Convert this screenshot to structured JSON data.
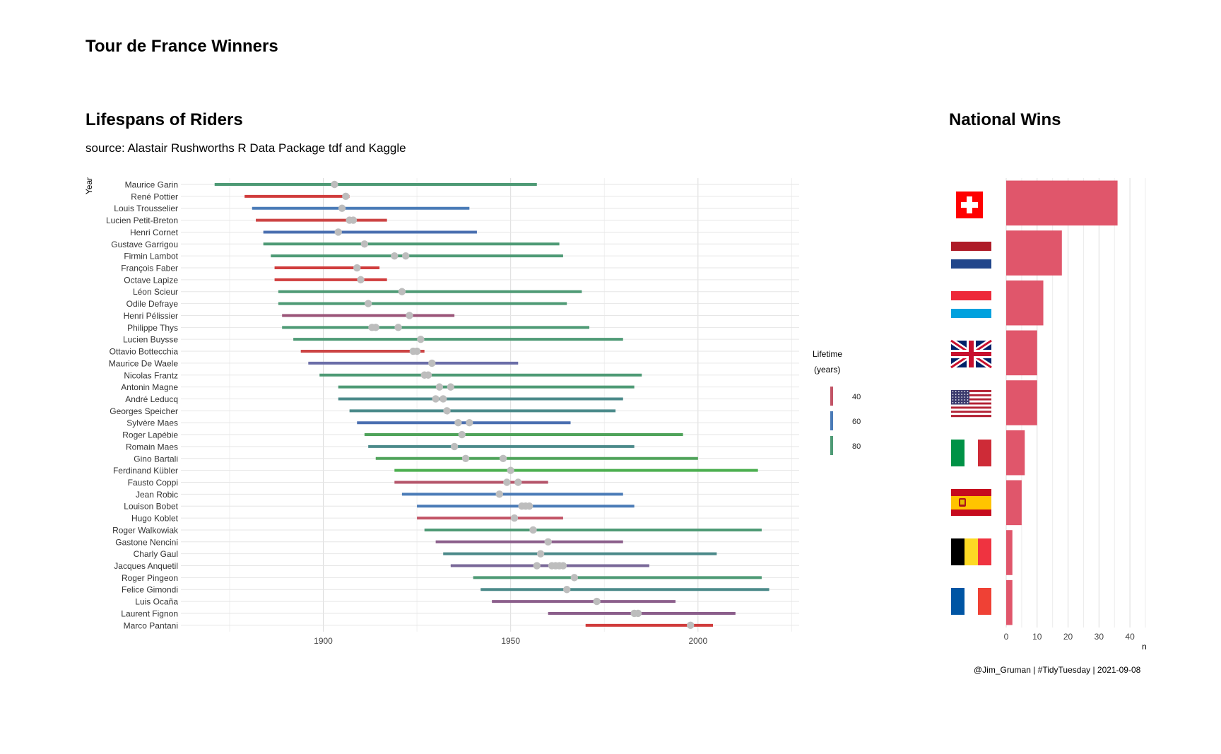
{
  "title": "Tour de France Winners",
  "left_panel": {
    "title": "Lifespans of Riders",
    "subtitle": "source: Alastair Rushworths R Data Package tdf and Kaggle"
  },
  "right_panel": {
    "title": "National Wins"
  },
  "caption": "@Jim_Gruman | #TidyTuesday | 2021-09-08",
  "legend": {
    "title_line1": "Lifetime",
    "title_line2": "(years)",
    "items": [
      {
        "label": "40",
        "color": "#c25466"
      },
      {
        "label": "60",
        "color": "#4a7bb7"
      },
      {
        "label": "80",
        "color": "#4e9a75"
      }
    ]
  },
  "chart_data": [
    {
      "type": "lifespan-range",
      "ylabel": "Year",
      "xlim": [
        1862,
        2027
      ],
      "xticks": [
        1900,
        1950,
        2000
      ],
      "grid": true,
      "riders": [
        {
          "name": "Maurice Garin",
          "born": 1871,
          "died": 1957,
          "wins": [
            1903
          ],
          "color": "#4e9a75"
        },
        {
          "name": "René Pottier",
          "born": 1879,
          "died": 1907,
          "wins": [
            1906
          ],
          "color": "#d03c3c"
        },
        {
          "name": "Louis Trousselier",
          "born": 1881,
          "died": 1939,
          "wins": [
            1905
          ],
          "color": "#4a7bb7"
        },
        {
          "name": "Lucien Petit-Breton",
          "born": 1882,
          "died": 1917,
          "wins": [
            1907,
            1908
          ],
          "color": "#cc4444"
        },
        {
          "name": "Henri Cornet",
          "born": 1884,
          "died": 1941,
          "wins": [
            1904
          ],
          "color": "#4a6fb0"
        },
        {
          "name": "Gustave Garrigou",
          "born": 1884,
          "died": 1963,
          "wins": [
            1911
          ],
          "color": "#4e9a75"
        },
        {
          "name": "Firmin Lambot",
          "born": 1886,
          "died": 1964,
          "wins": [
            1919,
            1922
          ],
          "color": "#4e9a75"
        },
        {
          "name": "François Faber",
          "born": 1887,
          "died": 1915,
          "wins": [
            1909
          ],
          "color": "#d03c3c"
        },
        {
          "name": "Octave Lapize",
          "born": 1887,
          "died": 1917,
          "wins": [
            1910
          ],
          "color": "#d03c3c"
        },
        {
          "name": "Léon Scieur",
          "born": 1888,
          "died": 1969,
          "wins": [
            1921
          ],
          "color": "#4e9a75"
        },
        {
          "name": "Odile Defraye",
          "born": 1888,
          "died": 1965,
          "wins": [
            1912
          ],
          "color": "#4e9a75"
        },
        {
          "name": "Henri Pélissier",
          "born": 1889,
          "died": 1935,
          "wins": [
            1923
          ],
          "color": "#9a5478"
        },
        {
          "name": "Philippe Thys",
          "born": 1889,
          "died": 1971,
          "wins": [
            1913,
            1914,
            1920
          ],
          "color": "#4e9a75"
        },
        {
          "name": "Lucien Buysse",
          "born": 1892,
          "died": 1980,
          "wins": [
            1926
          ],
          "color": "#4e9a75"
        },
        {
          "name": "Ottavio Bottecchia",
          "born": 1894,
          "died": 1927,
          "wins": [
            1924,
            1925
          ],
          "color": "#cc4444"
        },
        {
          "name": "Maurice De Waele",
          "born": 1896,
          "died": 1952,
          "wins": [
            1929
          ],
          "color": "#6b6ea8"
        },
        {
          "name": "Nicolas Frantz",
          "born": 1899,
          "died": 1985,
          "wins": [
            1927,
            1928
          ],
          "color": "#4e9a75"
        },
        {
          "name": "Antonin Magne",
          "born": 1904,
          "died": 1983,
          "wins": [
            1931,
            1934
          ],
          "color": "#4e9a75"
        },
        {
          "name": "André Leducq",
          "born": 1904,
          "died": 1980,
          "wins": [
            1930,
            1932
          ],
          "color": "#4b8a8a"
        },
        {
          "name": "Georges Speicher",
          "born": 1907,
          "died": 1978,
          "wins": [
            1933
          ],
          "color": "#4b8a8a"
        },
        {
          "name": "Sylvère Maes",
          "born": 1909,
          "died": 1966,
          "wins": [
            1936,
            1939
          ],
          "color": "#4a6fb0"
        },
        {
          "name": "Roger Lapébie",
          "born": 1911,
          "died": 1996,
          "wins": [
            1937
          ],
          "color": "#4fa35a"
        },
        {
          "name": "Romain Maes",
          "born": 1912,
          "died": 1983,
          "wins": [
            1935
          ],
          "color": "#4b8a8a"
        },
        {
          "name": "Gino Bartali",
          "born": 1914,
          "died": 2000,
          "wins": [
            1938,
            1948
          ],
          "color": "#4fa35a"
        },
        {
          "name": "Ferdinand Kübler",
          "born": 1919,
          "died": 2016,
          "wins": [
            1950
          ],
          "color": "#4caf50"
        },
        {
          "name": "Fausto Coppi",
          "born": 1919,
          "died": 1960,
          "wins": [
            1949,
            1952
          ],
          "color": "#b5566b"
        },
        {
          "name": "Jean Robic",
          "born": 1921,
          "died": 1980,
          "wins": [
            1947
          ],
          "color": "#4a7bb7"
        },
        {
          "name": "Louison Bobet",
          "born": 1925,
          "died": 1983,
          "wins": [
            1953,
            1954,
            1955
          ],
          "color": "#4a7bb7"
        },
        {
          "name": "Hugo Koblet",
          "born": 1925,
          "died": 1964,
          "wins": [
            1951
          ],
          "color": "#c25466"
        },
        {
          "name": "Roger Walkowiak",
          "born": 1927,
          "died": 2017,
          "wins": [
            1956
          ],
          "color": "#4e9a75"
        },
        {
          "name": "Gastone Nencini",
          "born": 1930,
          "died": 1980,
          "wins": [
            1960
          ],
          "color": "#8b5e8b"
        },
        {
          "name": "Charly Gaul",
          "born": 1932,
          "died": 2005,
          "wins": [
            1958
          ],
          "color": "#4b8a8a"
        },
        {
          "name": "Jacques Anquetil",
          "born": 1934,
          "died": 1987,
          "wins": [
            1957,
            1961,
            1962,
            1963,
            1964
          ],
          "color": "#7a6898"
        },
        {
          "name": "Roger Pingeon",
          "born": 1940,
          "died": 2017,
          "wins": [
            1967
          ],
          "color": "#4e9a75"
        },
        {
          "name": "Felice Gimondi",
          "born": 1942,
          "died": 2019,
          "wins": [
            1965
          ],
          "color": "#4b8a8a"
        },
        {
          "name": "Luis Ocaña",
          "born": 1945,
          "died": 1994,
          "wins": [
            1973
          ],
          "color": "#8b5e8b"
        },
        {
          "name": "Laurent Fignon",
          "born": 1960,
          "died": 2010,
          "wins": [
            1983,
            1984
          ],
          "color": "#8b5e8b"
        },
        {
          "name": "Marco Pantani",
          "born": 1970,
          "died": 2004,
          "wins": [
            1998
          ],
          "color": "#d03c3c"
        }
      ]
    },
    {
      "type": "bar",
      "orientation": "horizontal",
      "xlabel": "n",
      "xlim": [
        0,
        45
      ],
      "xticks": [
        0,
        10,
        20,
        30,
        40
      ],
      "bar_color": "#e0566b",
      "categories": [
        "Switzerland",
        "Netherlands",
        "Luxembourg",
        "United Kingdom",
        "United States",
        "Italy",
        "Spain",
        "Belgium",
        "France"
      ],
      "values": [
        36,
        18,
        12,
        10,
        10,
        6,
        5,
        2,
        2
      ]
    }
  ]
}
